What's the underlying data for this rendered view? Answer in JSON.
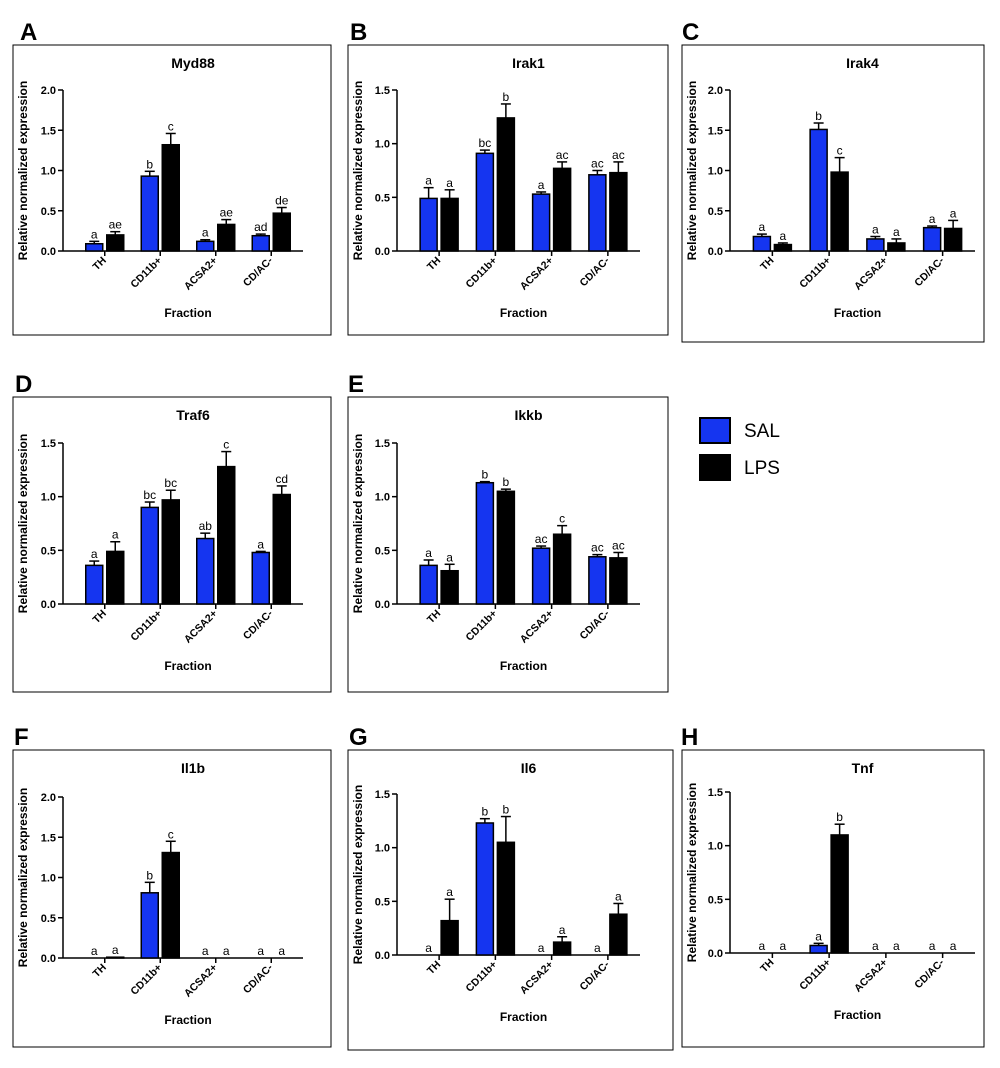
{
  "legend": {
    "items": [
      {
        "label": "SAL",
        "color": "#1535f0"
      },
      {
        "label": "LPS",
        "color": "#000000"
      }
    ]
  },
  "colors": {
    "sal": "#1535f0",
    "lps": "#000000"
  },
  "chart_data": [
    {
      "panel": "A",
      "type": "bar",
      "title": "Myd88",
      "xlabel": "Fraction",
      "ylabel": "Relative normalized expression",
      "categories": [
        "TH",
        "CD11b+",
        "ACSA2+",
        "CD/AC-"
      ],
      "ylim": [
        0,
        2.0
      ],
      "yticks": [
        "0.0",
        "0.5",
        "1.0",
        "1.5",
        "2.0"
      ],
      "series": [
        {
          "name": "SAL",
          "values": [
            0.09,
            0.93,
            0.12,
            0.19
          ],
          "errors": [
            0.03,
            0.06,
            0.02,
            0.02
          ],
          "letters": [
            "a",
            "b",
            "a",
            "ad"
          ]
        },
        {
          "name": "LPS",
          "values": [
            0.2,
            1.32,
            0.33,
            0.47
          ],
          "errors": [
            0.04,
            0.14,
            0.06,
            0.07
          ],
          "letters": [
            "ae",
            "c",
            "ae",
            "de"
          ]
        }
      ]
    },
    {
      "panel": "B",
      "type": "bar",
      "title": "Irak1",
      "xlabel": "Fraction",
      "ylabel": "Relative normalized expression",
      "categories": [
        "TH",
        "CD11b+",
        "ACSA2+",
        "CD/AC-"
      ],
      "ylim": [
        0,
        1.5
      ],
      "yticks": [
        "0.0",
        "0.5",
        "1.0",
        "1.5"
      ],
      "series": [
        {
          "name": "SAL",
          "values": [
            0.49,
            0.91,
            0.53,
            0.71
          ],
          "errors": [
            0.1,
            0.03,
            0.02,
            0.04
          ],
          "letters": [
            "a",
            "bc",
            "a",
            "ac"
          ]
        },
        {
          "name": "LPS",
          "values": [
            0.49,
            1.24,
            0.77,
            0.73
          ],
          "errors": [
            0.08,
            0.13,
            0.06,
            0.1
          ],
          "letters": [
            "a",
            "b",
            "ac",
            "ac"
          ]
        }
      ]
    },
    {
      "panel": "C",
      "type": "bar",
      "title": "Irak4",
      "xlabel": "Fraction",
      "ylabel": "Relative normalized expression",
      "categories": [
        "TH",
        "CD11b+",
        "ACSA2+",
        "CD/AC-"
      ],
      "ylim": [
        0,
        2.0
      ],
      "yticks": [
        "0.0",
        "0.5",
        "1.0",
        "1.5",
        "2.0"
      ],
      "series": [
        {
          "name": "SAL",
          "values": [
            0.18,
            1.51,
            0.15,
            0.29
          ],
          "errors": [
            0.03,
            0.08,
            0.03,
            0.02
          ],
          "letters": [
            "a",
            "b",
            "a",
            "a"
          ]
        },
        {
          "name": "LPS",
          "values": [
            0.08,
            0.98,
            0.1,
            0.28
          ],
          "errors": [
            0.02,
            0.18,
            0.05,
            0.1
          ],
          "letters": [
            "a",
            "c",
            "a",
            "a"
          ]
        }
      ]
    },
    {
      "panel": "D",
      "type": "bar",
      "title": "Traf6",
      "xlabel": "Fraction",
      "ylabel": "Relative normalized expression",
      "categories": [
        "TH",
        "CD11b+",
        "ACSA2+",
        "CD/AC-"
      ],
      "ylim": [
        0,
        1.5
      ],
      "yticks": [
        "0.0",
        "0.5",
        "1.0",
        "1.5"
      ],
      "series": [
        {
          "name": "SAL",
          "values": [
            0.36,
            0.9,
            0.61,
            0.48
          ],
          "errors": [
            0.04,
            0.05,
            0.05,
            0.01
          ],
          "letters": [
            "a",
            "bc",
            "ab",
            "a"
          ]
        },
        {
          "name": "LPS",
          "values": [
            0.49,
            0.97,
            1.28,
            1.02
          ],
          "errors": [
            0.09,
            0.09,
            0.14,
            0.08
          ],
          "letters": [
            "a",
            "bc",
            "c",
            "cd"
          ]
        }
      ]
    },
    {
      "panel": "E",
      "type": "bar",
      "title": "Ikkb",
      "xlabel": "Fraction",
      "ylabel": "Relative normalized expression",
      "categories": [
        "TH",
        "CD11b+",
        "ACSA2+",
        "CD/AC-"
      ],
      "ylim": [
        0,
        1.5
      ],
      "yticks": [
        "0.0",
        "0.5",
        "1.0",
        "1.5"
      ],
      "series": [
        {
          "name": "SAL",
          "values": [
            0.36,
            1.13,
            0.52,
            0.44
          ],
          "errors": [
            0.05,
            0.01,
            0.02,
            0.02
          ],
          "letters": [
            "a",
            "b",
            "ac",
            "ac"
          ]
        },
        {
          "name": "LPS",
          "values": [
            0.31,
            1.05,
            0.65,
            0.43
          ],
          "errors": [
            0.06,
            0.02,
            0.08,
            0.05
          ],
          "letters": [
            "a",
            "b",
            "c",
            "ac"
          ]
        }
      ]
    },
    {
      "panel": "F",
      "type": "bar",
      "title": "Il1b",
      "xlabel": "Fraction",
      "ylabel": "Relative normalized expression",
      "categories": [
        "TH",
        "CD11b+",
        "ACSA2+",
        "CD/AC-"
      ],
      "ylim": [
        0,
        2.0
      ],
      "yticks": [
        "0.0",
        "0.5",
        "1.0",
        "1.5",
        "2.0"
      ],
      "series": [
        {
          "name": "SAL",
          "values": [
            0,
            0.81,
            0,
            0
          ],
          "errors": [
            0,
            0.13,
            0,
            0
          ],
          "letters": [
            "a",
            "b",
            "a",
            "a"
          ]
        },
        {
          "name": "LPS",
          "values": [
            0.01,
            1.31,
            0,
            0
          ],
          "errors": [
            0,
            0.14,
            0,
            0
          ],
          "letters": [
            "a",
            "c",
            "a",
            "a"
          ]
        }
      ]
    },
    {
      "panel": "G",
      "type": "bar",
      "title": "Il6",
      "xlabel": "Fraction",
      "ylabel": "Relative normalized expression",
      "categories": [
        "TH",
        "CD11b+",
        "ACSA2+",
        "CD/AC-"
      ],
      "ylim": [
        0,
        1.5
      ],
      "yticks": [
        "0.0",
        "0.5",
        "1.0",
        "1.5"
      ],
      "series": [
        {
          "name": "SAL",
          "values": [
            0,
            1.23,
            0,
            0
          ],
          "errors": [
            0,
            0.04,
            0,
            0
          ],
          "letters": [
            "a",
            "b",
            "a",
            "a"
          ]
        },
        {
          "name": "LPS",
          "values": [
            0.32,
            1.05,
            0.12,
            0.38
          ],
          "errors": [
            0.2,
            0.24,
            0.05,
            0.1
          ],
          "letters": [
            "a",
            "b",
            "a",
            "a"
          ]
        }
      ]
    },
    {
      "panel": "H",
      "type": "bar",
      "title": "Tnf",
      "xlabel": "Fraction",
      "ylabel": "Relative normalized expression",
      "categories": [
        "TH",
        "CD11b+",
        "ACSA2+",
        "CD/AC-"
      ],
      "ylim": [
        0,
        1.5
      ],
      "yticks": [
        "0.0",
        "0.5",
        "1.0",
        "1.5"
      ],
      "series": [
        {
          "name": "SAL",
          "values": [
            0,
            0.07,
            0,
            0
          ],
          "errors": [
            0,
            0.02,
            0,
            0
          ],
          "letters": [
            "a",
            "a",
            "a",
            "a"
          ]
        },
        {
          "name": "LPS",
          "values": [
            0,
            1.1,
            0,
            0
          ],
          "errors": [
            0,
            0.1,
            0,
            0
          ],
          "letters": [
            "a",
            "b",
            "a",
            "a"
          ]
        }
      ]
    }
  ]
}
